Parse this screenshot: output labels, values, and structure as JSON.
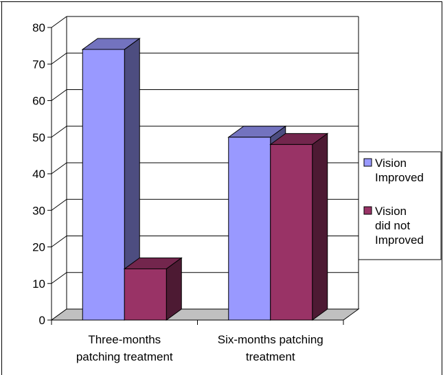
{
  "chart_data": {
    "type": "bar",
    "categories": [
      "Three-months patching treatment",
      "Six-months patching treatment"
    ],
    "category_lines": [
      [
        "Three-months",
        "patching treatment"
      ],
      [
        "Six-months patching",
        "treatment"
      ]
    ],
    "series": [
      {
        "name": "Vision Improved",
        "name_lines": [
          "Vision",
          "Improved"
        ],
        "values": [
          74,
          50
        ],
        "color": "#9999ff"
      },
      {
        "name": "Vision did not Improved",
        "name_lines": [
          "Vision",
          "did not",
          "Improved"
        ],
        "values": [
          14,
          48
        ],
        "color": "#993366"
      }
    ],
    "ylim": [
      0,
      80
    ],
    "yticks": [
      0,
      10,
      20,
      30,
      40,
      50,
      60,
      70,
      80
    ],
    "grid": true,
    "legend_position": "right",
    "style": "3d-clustered-column",
    "title": "",
    "xlabel": "",
    "ylabel": ""
  }
}
